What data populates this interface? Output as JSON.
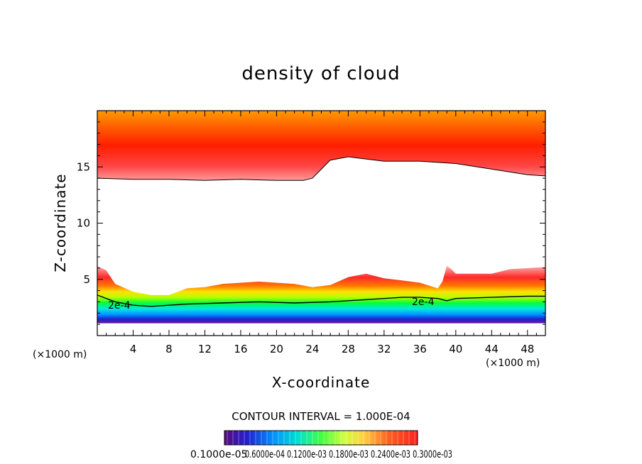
{
  "chart_data": {
    "type": "heatmap",
    "title": "density of cloud",
    "xlabel": "X-coordinate",
    "ylabel": "Z-coordinate",
    "x_unit_left": "(×1000 m)",
    "x_unit_right": "(×1000 m)",
    "xlim": [
      0,
      50
    ],
    "ylim": [
      0,
      20
    ],
    "x_ticks": [
      4,
      8,
      12,
      16,
      20,
      24,
      28,
      32,
      36,
      40,
      44,
      48
    ],
    "y_ticks": [
      5,
      10,
      15
    ],
    "grid": false,
    "contour_interval_text": "CONTOUR INTERVAL = 1.000E-04",
    "contour_label": "2e-4",
    "colorbar_labels_text": "0.1000e-05",
    "colorbar_labels_overlap_text": "0.6000e-04 0.1200e-03 0.1800e-03 0.2400e-03 0.3000e-03",
    "colorbar_range": [
      1e-06,
      0.0003
    ],
    "regions": {
      "upper_cloud_base_x": [
        0,
        4,
        8,
        12,
        16,
        20,
        23,
        24,
        25,
        26,
        28,
        32,
        36,
        40,
        44,
        48,
        50
      ],
      "upper_cloud_base_z": [
        14.0,
        13.9,
        13.9,
        13.8,
        13.9,
        13.8,
        13.8,
        14.0,
        14.8,
        15.6,
        15.9,
        15.5,
        15.5,
        15.3,
        14.8,
        14.3,
        14.2
      ],
      "lower_cloud_top_x": [
        0,
        1,
        2,
        4,
        6,
        8,
        9,
        10,
        12,
        14,
        18,
        22,
        24,
        26,
        28,
        30,
        32,
        34,
        36,
        38,
        38.5,
        39,
        39.5,
        40,
        44,
        46,
        48,
        50
      ],
      "lower_cloud_top_z": [
        6.2,
        5.8,
        4.6,
        3.9,
        3.6,
        3.6,
        3.9,
        4.2,
        4.3,
        4.6,
        4.8,
        4.6,
        4.3,
        4.5,
        5.2,
        5.5,
        5.1,
        4.9,
        4.7,
        4.2,
        4.8,
        6.2,
        5.9,
        5.5,
        5.5,
        5.9,
        6.0,
        6.1
      ],
      "contour_2e4_x": [
        0,
        2,
        4,
        6,
        8,
        10,
        14,
        18,
        22,
        26,
        30,
        34,
        36,
        38,
        39,
        40,
        44,
        48,
        50
      ],
      "contour_2e4_z": [
        3.6,
        3.0,
        2.7,
        2.6,
        2.7,
        2.8,
        2.9,
        3.0,
        2.9,
        3.0,
        3.2,
        3.4,
        3.4,
        3.3,
        3.1,
        3.3,
        3.4,
        3.5,
        3.5
      ],
      "lower_cloud_base_z": 1.1
    }
  }
}
